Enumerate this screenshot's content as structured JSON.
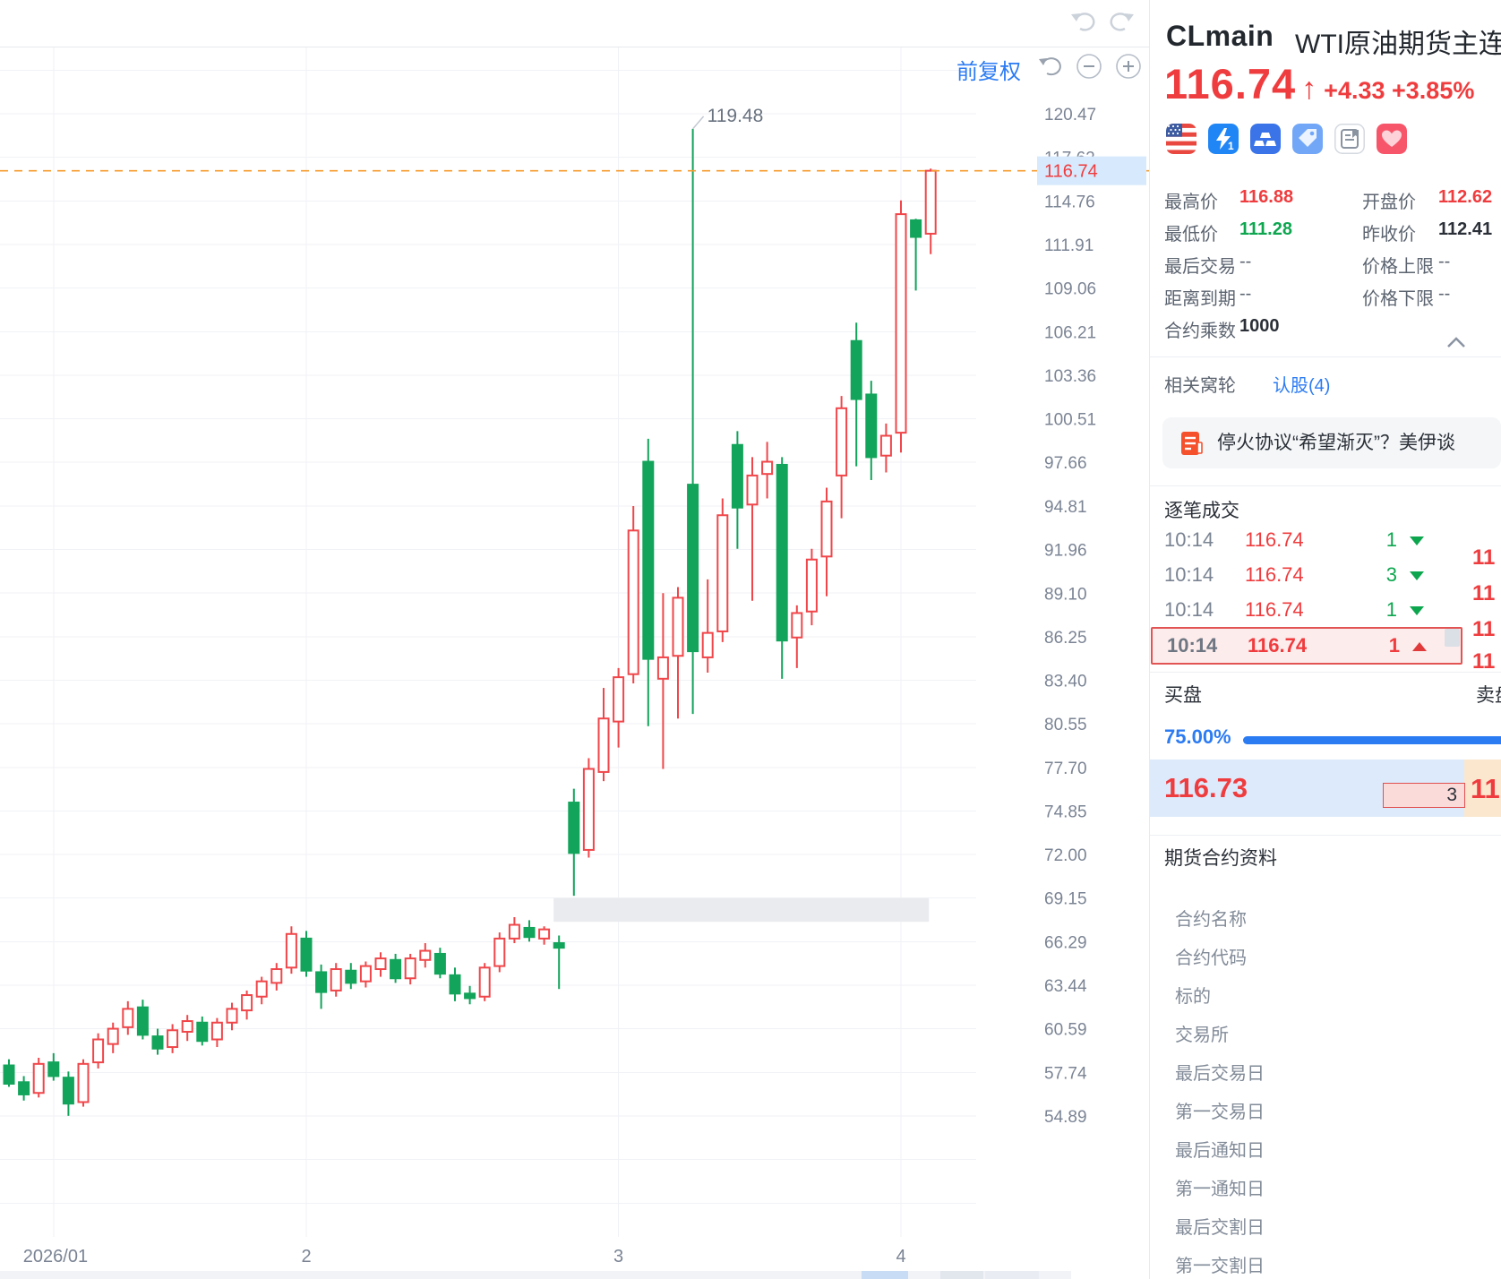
{
  "toolbar": {
    "adjust_label": "前复权"
  },
  "header": {
    "symbol": "CLmain",
    "name": "WTI原油期货主连",
    "price": "116.74",
    "change": "+4.33",
    "change_pct": "+3.85%"
  },
  "icons": [
    "us-flag",
    "realtime-quote-lv1",
    "gold-futures",
    "tag",
    "notes",
    "favorite-heart"
  ],
  "quote": {
    "rows": [
      {
        "l1": "最高价",
        "v1": "116.88",
        "c1": "red",
        "l2": "开盘价",
        "v2": "112.62",
        "c2": "red"
      },
      {
        "l1": "最低价",
        "v1": "111.28",
        "c1": "green",
        "l2": "昨收价",
        "v2": "112.41",
        "c2": "dark"
      },
      {
        "l1": "最后交易",
        "v1": "--",
        "c1": "dim",
        "l2": "价格上限",
        "v2": "--",
        "c2": "dim"
      },
      {
        "l1": "距离到期",
        "v1": "--",
        "c1": "dim",
        "l2": "价格下限",
        "v2": "--",
        "c2": "dim"
      },
      {
        "l1": "合约乘数",
        "v1": "1000",
        "c1": "dark",
        "l2": "",
        "v2": "",
        "c2": ""
      }
    ]
  },
  "related": {
    "label": "相关窝轮",
    "link": "认股(4)"
  },
  "news": {
    "text": "停火协议“希望渐灭”？美伊谈"
  },
  "ticks": {
    "title": "逐笔成交",
    "rows": [
      {
        "time": "10:14",
        "price": "116.74",
        "qty": "1",
        "dir": "down",
        "highlight": false
      },
      {
        "time": "10:14",
        "price": "116.74",
        "qty": "3",
        "dir": "down",
        "highlight": false
      },
      {
        "time": "10:14",
        "price": "116.74",
        "qty": "1",
        "dir": "down",
        "highlight": false
      },
      {
        "time": "10:14",
        "price": "116.74",
        "qty": "1",
        "dir": "up",
        "highlight": true
      }
    ],
    "ladder_fragments": [
      "11",
      "11",
      "11",
      "11"
    ]
  },
  "book": {
    "buy_label": "买盘",
    "sell_label": "卖盘",
    "buy_ratio": "75.00%",
    "bid_price": "116.73",
    "bid_qty": "3",
    "ask_price_fragment": "11"
  },
  "contract": {
    "title": "期货合约资料",
    "rows": [
      "合约名称",
      "合约代码",
      "标的",
      "交易所",
      "最后交易日",
      "第一交易日",
      "最后通知日",
      "第一通知日",
      "最后交割日",
      "第一交割日"
    ]
  },
  "colors": {
    "rise": "#f0464a",
    "fall": "#12a45a",
    "blue": "#2b7bf3",
    "price_red": "#ef3c3e",
    "dash_line": "#f79b2e",
    "grid": "#f0f2f6",
    "axis_text": "#7b8494",
    "tag_bg": "#d7e9fc",
    "band": "#e9ebee"
  },
  "chart_data": {
    "type": "candlestick",
    "x_axis_labels": [
      "2026/01",
      "2",
      "3",
      "4"
    ],
    "ylim": [
      54.89,
      120.47
    ],
    "y_ticks": [
      120.47,
      117.62,
      114.76,
      111.91,
      109.06,
      106.21,
      103.36,
      100.51,
      97.66,
      94.81,
      91.96,
      89.1,
      86.25,
      83.4,
      80.55,
      77.7,
      74.85,
      72.0,
      69.15,
      66.29,
      63.44,
      60.59,
      57.74,
      54.89
    ],
    "x_ticks": [
      {
        "label": "2026/01",
        "index": 3
      },
      {
        "label": "2",
        "index": 20
      },
      {
        "label": "3",
        "index": 41
      },
      {
        "label": "4",
        "index": 60
      }
    ],
    "current_price": 116.74,
    "current_price_label": "116.74",
    "annotation": {
      "label": "119.48",
      "index": 46
    },
    "highlight_band": {
      "from_index": 37,
      "to_index": 62,
      "price_top": 69.15,
      "price_bottom": 67.6
    },
    "candles": [
      [
        58.2,
        58.6,
        56.8,
        57.0
      ],
      [
        57.1,
        57.5,
        55.9,
        56.3
      ],
      [
        56.4,
        58.7,
        56.1,
        58.3
      ],
      [
        58.4,
        59.0,
        57.2,
        57.5
      ],
      [
        57.4,
        57.8,
        54.9,
        55.7
      ],
      [
        55.8,
        58.6,
        55.5,
        58.3
      ],
      [
        58.4,
        60.3,
        58.0,
        59.9
      ],
      [
        59.6,
        61.0,
        59.0,
        60.6
      ],
      [
        60.7,
        62.4,
        60.2,
        61.9
      ],
      [
        62.0,
        62.5,
        59.9,
        60.2
      ],
      [
        60.1,
        60.6,
        58.9,
        59.3
      ],
      [
        59.4,
        60.9,
        59.0,
        60.5
      ],
      [
        60.4,
        61.5,
        59.8,
        61.1
      ],
      [
        61.0,
        61.4,
        59.5,
        59.8
      ],
      [
        59.9,
        61.3,
        59.4,
        61.0
      ],
      [
        61.0,
        62.3,
        60.5,
        61.9
      ],
      [
        61.8,
        63.1,
        61.2,
        62.8
      ],
      [
        62.7,
        64.0,
        62.2,
        63.7
      ],
      [
        63.6,
        64.9,
        63.1,
        64.5
      ],
      [
        64.6,
        67.3,
        64.2,
        66.8
      ],
      [
        66.5,
        67.0,
        64.0,
        64.4
      ],
      [
        64.3,
        64.8,
        61.9,
        63.0
      ],
      [
        63.1,
        64.9,
        62.7,
        64.5
      ],
      [
        64.4,
        64.9,
        63.2,
        63.6
      ],
      [
        63.7,
        65.0,
        63.3,
        64.7
      ],
      [
        64.5,
        65.6,
        64.0,
        65.2
      ],
      [
        65.1,
        65.5,
        63.6,
        63.9
      ],
      [
        63.9,
        65.5,
        63.5,
        65.2
      ],
      [
        65.1,
        66.2,
        64.6,
        65.7
      ],
      [
        65.5,
        65.9,
        63.9,
        64.2
      ],
      [
        64.1,
        64.6,
        62.4,
        62.9
      ],
      [
        62.9,
        63.4,
        62.2,
        62.6
      ],
      [
        62.7,
        64.9,
        62.4,
        64.6
      ],
      [
        64.7,
        66.9,
        64.3,
        66.5
      ],
      [
        66.5,
        67.9,
        66.2,
        67.4
      ],
      [
        67.2,
        67.7,
        66.3,
        66.6
      ],
      [
        66.5,
        67.3,
        66.1,
        67.1
      ],
      [
        66.2,
        66.7,
        63.2,
        65.9
      ],
      [
        75.4,
        76.3,
        69.3,
        72.1
      ],
      [
        72.3,
        78.3,
        71.8,
        77.6
      ],
      [
        77.4,
        82.9,
        76.8,
        80.9
      ],
      [
        80.7,
        84.2,
        79.0,
        83.6
      ],
      [
        83.8,
        94.8,
        83.2,
        93.2
      ],
      [
        97.7,
        99.2,
        80.4,
        84.8
      ],
      [
        83.5,
        89.1,
        77.6,
        84.9
      ],
      [
        85.0,
        89.5,
        80.9,
        88.8
      ],
      [
        96.2,
        119.48,
        81.2,
        85.3
      ],
      [
        84.9,
        90.0,
        83.9,
        86.5
      ],
      [
        86.6,
        95.3,
        85.9,
        94.2
      ],
      [
        98.8,
        99.7,
        92.0,
        94.7
      ],
      [
        94.9,
        98.0,
        88.6,
        96.8
      ],
      [
        96.9,
        99.0,
        95.3,
        97.7
      ],
      [
        97.5,
        98.0,
        83.5,
        86.0
      ],
      [
        86.2,
        88.3,
        84.2,
        87.8
      ],
      [
        87.9,
        92.0,
        87.0,
        91.3
      ],
      [
        91.5,
        96.0,
        88.9,
        95.1
      ],
      [
        96.8,
        102.0,
        94.0,
        101.2
      ],
      [
        105.6,
        106.8,
        97.4,
        101.8
      ],
      [
        102.1,
        103.0,
        96.5,
        98.0
      ],
      [
        98.1,
        100.2,
        97.0,
        99.4
      ],
      [
        99.6,
        114.8,
        98.3,
        113.9
      ],
      [
        113.5,
        113.6,
        108.9,
        112.41
      ],
      [
        112.62,
        116.88,
        111.28,
        116.74
      ]
    ]
  }
}
